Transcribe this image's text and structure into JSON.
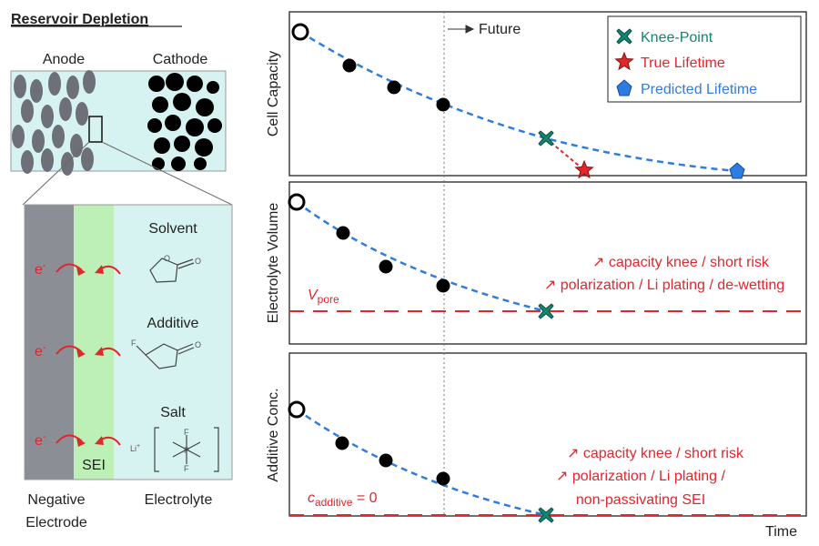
{
  "left": {
    "title": "Reservoir Depletion",
    "anode": "Anode",
    "cathode": "Cathode",
    "solvent": "Solvent",
    "additive": "Additive",
    "salt": "Salt",
    "sei": "SEI",
    "electron": "e",
    "electron_charge": "-",
    "atom_o": "O",
    "atom_f": "F",
    "atom_p": "P",
    "lithium": "Li",
    "lithium_charge": "+",
    "negative_electrode": [
      "Negative",
      "Electrode"
    ],
    "electrolyte": "Electrolyte"
  },
  "right": {
    "future": "Future",
    "x_label": "Time",
    "legend": [
      "Knee-Point",
      "True Lifetime",
      "Predicted Lifetime"
    ],
    "panels": [
      {
        "y_label": "Cell Capacity"
      },
      {
        "y_label": "Electrolyte Volume",
        "threshold": [
          "V",
          "pore"
        ],
        "notes": [
          "↗ capacity knee / short risk",
          "↗ polarization / Li plating / de-wetting"
        ]
      },
      {
        "y_label": "Additive Conc.",
        "threshold": [
          "c",
          "additive",
          " = 0"
        ],
        "notes": [
          "↗ capacity knee / short risk",
          "↗ polarization / Li plating /",
          "non-passivating SEI"
        ]
      }
    ]
  }
}
